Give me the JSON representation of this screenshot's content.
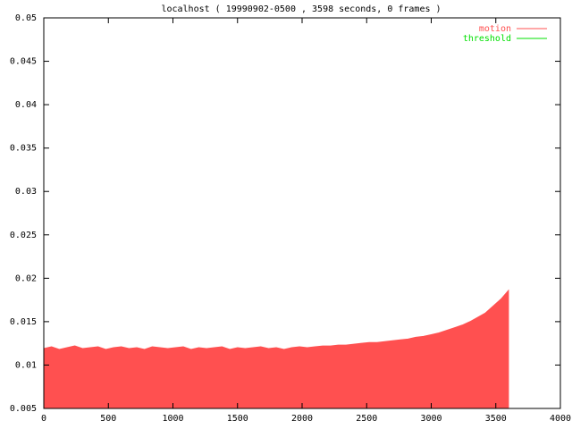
{
  "chart_data": {
    "type": "area",
    "title": "localhost ( 19990902-0500 , 3598 seconds, 0 frames )",
    "xlim": [
      0,
      4000
    ],
    "xticks": [
      0,
      500,
      1000,
      1500,
      2000,
      2500,
      3000,
      3500,
      4000
    ],
    "ylim": [
      0.005,
      0.05
    ],
    "yticks": [
      0.005,
      0.01,
      0.015,
      0.02,
      0.025,
      0.03,
      0.035,
      0.04,
      0.045,
      0.05
    ],
    "legend": "top-right",
    "series": [
      {
        "name": "motion",
        "color": "#ff5050",
        "x": [
          0,
          60,
          120,
          180,
          240,
          300,
          360,
          420,
          480,
          540,
          600,
          660,
          720,
          780,
          840,
          900,
          960,
          1020,
          1080,
          1140,
          1200,
          1260,
          1320,
          1380,
          1440,
          1500,
          1560,
          1620,
          1680,
          1740,
          1800,
          1860,
          1920,
          1980,
          2040,
          2100,
          2160,
          2220,
          2280,
          2340,
          2400,
          2460,
          2520,
          2580,
          2640,
          2700,
          2760,
          2820,
          2880,
          2940,
          3000,
          3060,
          3120,
          3180,
          3240,
          3300,
          3360,
          3420,
          3480,
          3540,
          3598
        ],
        "values": [
          0.0119,
          0.0121,
          0.0118,
          0.012,
          0.0122,
          0.0119,
          0.012,
          0.0121,
          0.0118,
          0.012,
          0.0121,
          0.0119,
          0.012,
          0.0118,
          0.0121,
          0.012,
          0.0119,
          0.012,
          0.0121,
          0.0118,
          0.012,
          0.0119,
          0.012,
          0.0121,
          0.0118,
          0.012,
          0.0119,
          0.012,
          0.0121,
          0.0119,
          0.012,
          0.0118,
          0.012,
          0.0121,
          0.012,
          0.0121,
          0.0122,
          0.0122,
          0.0123,
          0.0123,
          0.0124,
          0.0125,
          0.0126,
          0.0126,
          0.0127,
          0.0128,
          0.0129,
          0.013,
          0.0132,
          0.0133,
          0.0135,
          0.0137,
          0.014,
          0.0143,
          0.0146,
          0.015,
          0.0155,
          0.016,
          0.0168,
          0.0176,
          0.0186
        ]
      },
      {
        "name": "threshold",
        "color": "#00e000",
        "x": [
          0,
          3598
        ],
        "values": [
          0.05,
          0.05
        ]
      }
    ]
  }
}
